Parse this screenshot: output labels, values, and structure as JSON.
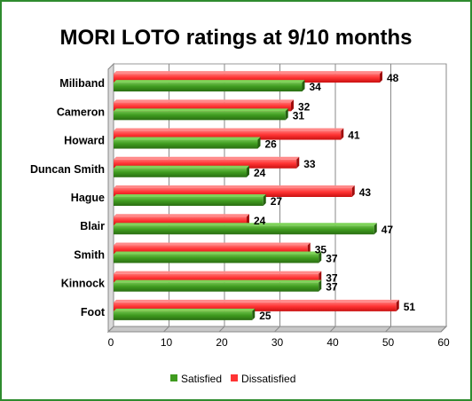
{
  "chart_data": {
    "type": "bar",
    "orientation": "horizontal",
    "title": "MORI LOTO ratings at 9/10 months",
    "categories": [
      "Miliband",
      "Cameron",
      "Howard",
      "Duncan Smith",
      "Hague",
      "Blair",
      "Smith",
      "Kinnock",
      "Foot"
    ],
    "series": [
      {
        "name": "Satisfied",
        "color": "#3f9b1f",
        "values": [
          34,
          31,
          26,
          24,
          27,
          47,
          37,
          37,
          25
        ]
      },
      {
        "name": "Dissatisfied",
        "color": "#ff3333",
        "values": [
          48,
          32,
          41,
          33,
          43,
          24,
          35,
          37,
          51
        ]
      }
    ],
    "xlim": [
      0,
      60
    ],
    "xticks": [
      0,
      10,
      20,
      30,
      40,
      50,
      60
    ],
    "grid": true,
    "legend_position": "bottom",
    "data_labels": true
  }
}
